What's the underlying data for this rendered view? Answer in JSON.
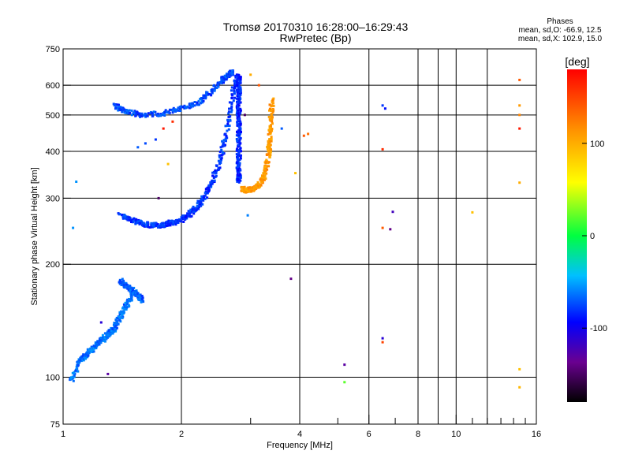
{
  "header": {
    "title_line1": "Tromsø 20170310 16:28:00–16:29:43",
    "title_line2": "RwPretec (Bp)"
  },
  "stats": {
    "heading": "Phases",
    "line_o": "mean, sd,O: -66.9, 12.5",
    "line_x": "mean, sd,X: 102.9, 15.0"
  },
  "chart_data": {
    "type": "scatter",
    "xlabel": "Frequency [MHz]",
    "ylabel": "Stationary phase Virtual Height [km]",
    "x_scale": "log",
    "y_scale": "log",
    "xlim": [
      1,
      16
    ],
    "ylim": [
      75,
      750
    ],
    "x_ticks": [
      1,
      2,
      4,
      6,
      8,
      10,
      16
    ],
    "x_tick_labels": [
      "1",
      "2",
      "4",
      "6",
      "8",
      "10",
      "16"
    ],
    "y_ticks": [
      75,
      100,
      200,
      300,
      400,
      500,
      600,
      750
    ],
    "y_tick_labels": [
      "75",
      "100",
      "200",
      "300",
      "400",
      "500",
      "600",
      "750"
    ],
    "grid": true,
    "colorbar": {
      "label": "[deg]",
      "range": [
        -180,
        180
      ],
      "ticks": [
        100,
        0,
        -100
      ],
      "tick_labels": [
        "100",
        "0",
        "-100"
      ]
    },
    "traces": [
      {
        "note": "O-mode F2 trace low branch",
        "x": [
          1.4,
          1.5,
          1.6,
          1.7,
          1.8,
          1.9,
          2.0,
          2.1,
          2.2,
          2.3,
          2.4,
          2.5,
          2.6,
          2.7,
          2.75
        ],
        "y": [
          270,
          262,
          256,
          254,
          255,
          258,
          263,
          272,
          285,
          305,
          335,
          375,
          440,
          560,
          640
        ],
        "phase": -80
      },
      {
        "note": "O-mode F2 upper branch",
        "x": [
          1.35,
          1.45,
          1.6,
          1.8,
          2.0,
          2.2,
          2.4,
          2.55,
          2.65,
          2.7
        ],
        "y": [
          530,
          510,
          500,
          505,
          520,
          540,
          580,
          620,
          645,
          650
        ],
        "phase": -75
      },
      {
        "note": "vertical column near foF2",
        "x": [
          2.8,
          2.8,
          2.8,
          2.8,
          2.8,
          2.8,
          2.8,
          2.8,
          2.8
        ],
        "y": [
          330,
          360,
          400,
          440,
          480,
          520,
          560,
          600,
          640
        ],
        "phase": -85
      },
      {
        "note": "X-mode trace",
        "x": [
          2.85,
          2.95,
          3.05,
          3.15,
          3.25,
          3.32,
          3.35,
          3.38,
          3.4
        ],
        "y": [
          318,
          315,
          318,
          325,
          345,
          380,
          420,
          480,
          560
        ],
        "phase": 110
      },
      {
        "note": "E/F1 low trace",
        "x": [
          1.05,
          1.1,
          1.15,
          1.2,
          1.25,
          1.3,
          1.35,
          1.4,
          1.45,
          1.5
        ],
        "y": [
          98,
          110,
          115,
          120,
          125,
          130,
          135,
          145,
          155,
          165
        ],
        "phase": -65
      },
      {
        "note": "Es segments",
        "x": [
          1.4,
          1.45,
          1.5,
          1.55,
          1.6
        ],
        "y": [
          180,
          175,
          170,
          165,
          160
        ],
        "phase": -70
      }
    ],
    "scattered_points": [
      {
        "x": 3.8,
        "y": 183,
        "phase": -140
      },
      {
        "x": 5.2,
        "y": 108,
        "phase": -130
      },
      {
        "x": 5.2,
        "y": 97,
        "phase": 20
      },
      {
        "x": 6.5,
        "y": 127,
        "phase": -110
      },
      {
        "x": 6.5,
        "y": 124,
        "phase": 150
      },
      {
        "x": 6.5,
        "y": 250,
        "phase": 140
      },
      {
        "x": 6.8,
        "y": 248,
        "phase": -140
      },
      {
        "x": 6.9,
        "y": 276,
        "phase": -120
      },
      {
        "x": 6.5,
        "y": 405,
        "phase": 160
      },
      {
        "x": 6.5,
        "y": 530,
        "phase": -80
      },
      {
        "x": 6.6,
        "y": 520,
        "phase": -90
      },
      {
        "x": 4.1,
        "y": 440,
        "phase": 140
      },
      {
        "x": 4.2,
        "y": 445,
        "phase": 130
      },
      {
        "x": 11.0,
        "y": 275,
        "phase": 90
      },
      {
        "x": 14.5,
        "y": 620,
        "phase": 140
      },
      {
        "x": 14.5,
        "y": 530,
        "phase": 110
      },
      {
        "x": 14.5,
        "y": 500,
        "phase": 120
      },
      {
        "x": 14.5,
        "y": 460,
        "phase": 170
      },
      {
        "x": 14.5,
        "y": 330,
        "phase": 100
      },
      {
        "x": 14.5,
        "y": 105,
        "phase": 90
      },
      {
        "x": 14.5,
        "y": 94,
        "phase": 95
      },
      {
        "x": 1.8,
        "y": 460,
        "phase": 170
      },
      {
        "x": 1.85,
        "y": 370,
        "phase": 90
      },
      {
        "x": 1.9,
        "y": 480,
        "phase": 160
      },
      {
        "x": 1.75,
        "y": 300,
        "phase": -150
      },
      {
        "x": 3.0,
        "y": 640,
        "phase": 100
      },
      {
        "x": 3.15,
        "y": 600,
        "phase": 140
      },
      {
        "x": 3.6,
        "y": 460,
        "phase": -70
      },
      {
        "x": 3.9,
        "y": 350,
        "phase": 90
      },
      {
        "x": 2.9,
        "y": 500,
        "phase": -150
      },
      {
        "x": 1.3,
        "y": 102,
        "phase": -130
      },
      {
        "x": 2.95,
        "y": 270,
        "phase": -60
      },
      {
        "x": 1.25,
        "y": 140,
        "phase": -110
      },
      {
        "x": 1.08,
        "y": 332,
        "phase": -55
      },
      {
        "x": 1.06,
        "y": 250,
        "phase": -55
      },
      {
        "x": 1.62,
        "y": 420,
        "phase": -75
      },
      {
        "x": 1.72,
        "y": 430,
        "phase": -80
      },
      {
        "x": 1.55,
        "y": 410,
        "phase": -70
      }
    ]
  }
}
